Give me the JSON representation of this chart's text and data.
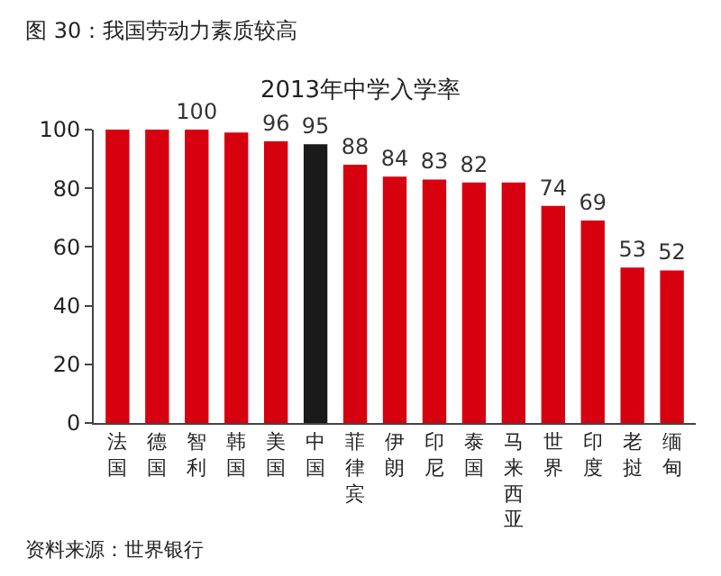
{
  "chart_data": {
    "type": "bar",
    "title": "2013年中学入学率",
    "subtitle": "图 30：我国劳动力素质较高",
    "categories": [
      "法国",
      "德国",
      "智利",
      "韩国",
      "美国",
      "中国",
      "菲律宾",
      "伊朗",
      "印尼",
      "泰国",
      "马来西亚",
      "世界",
      "印度",
      "老挝",
      "缅甸"
    ],
    "values": [
      100,
      100,
      100,
      99,
      96,
      95,
      88,
      84,
      83,
      82,
      82,
      74,
      69,
      53,
      52
    ],
    "value_labels": [
      null,
      null,
      "100",
      null,
      "96",
      "95",
      "88",
      "84",
      "83",
      "82",
      null,
      "74",
      "69",
      "53",
      "52"
    ],
    "colors": [
      "#d7000f",
      "#d7000f",
      "#d7000f",
      "#d7000f",
      "#d7000f",
      "#1a1a1a",
      "#d7000f",
      "#d7000f",
      "#d7000f",
      "#d7000f",
      "#d7000f",
      "#d7000f",
      "#d7000f",
      "#d7000f",
      "#d7000f"
    ],
    "ylim": [
      0,
      100
    ],
    "yticks": [
      0,
      20,
      40,
      60,
      80,
      100
    ],
    "grid": false,
    "legend": false,
    "annotations": [
      "资料来源：世界银行"
    ]
  }
}
